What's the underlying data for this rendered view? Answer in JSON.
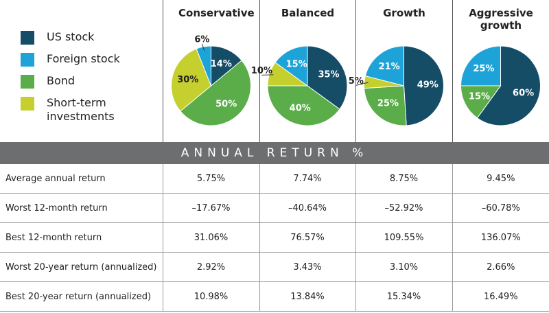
{
  "legend": {
    "items": [
      {
        "name": "US stock",
        "color": "#154d67"
      },
      {
        "name": "Foreign stock",
        "color": "#1ea3d8"
      },
      {
        "name": "Bond",
        "color": "#5aad48"
      },
      {
        "name": "Short-term investments",
        "color": "#c5cf2e"
      }
    ]
  },
  "chart_data": [
    {
      "type": "pie",
      "title": "Conservative",
      "categories": [
        "US stock",
        "Bond",
        "Short-term investments",
        "Foreign stock"
      ],
      "values": [
        14,
        50,
        30,
        6
      ],
      "value_labels": [
        "14%",
        "50%",
        "30%",
        "6%"
      ],
      "colors": [
        "#154d67",
        "#5aad48",
        "#c5cf2e",
        "#1ea3d8"
      ]
    },
    {
      "type": "pie",
      "title": "Balanced",
      "categories": [
        "US stock",
        "Bond",
        "Short-term investments",
        "Foreign stock"
      ],
      "values": [
        35,
        40,
        10,
        15
      ],
      "value_labels": [
        "35%",
        "40%",
        "10%",
        "15%"
      ],
      "colors": [
        "#154d67",
        "#5aad48",
        "#c5cf2e",
        "#1ea3d8"
      ]
    },
    {
      "type": "pie",
      "title": "Growth",
      "categories": [
        "US stock",
        "Bond",
        "Short-term investments",
        "Foreign stock"
      ],
      "values": [
        49,
        25,
        5,
        21
      ],
      "value_labels": [
        "49%",
        "25%",
        "5%",
        "21%"
      ],
      "colors": [
        "#154d67",
        "#5aad48",
        "#c5cf2e",
        "#1ea3d8"
      ]
    },
    {
      "type": "pie",
      "title": "Aggressive growth",
      "categories": [
        "US stock",
        "Bond",
        "Foreign stock"
      ],
      "values": [
        60,
        15,
        25
      ],
      "value_labels": [
        "60%",
        "15%",
        "25%"
      ],
      "colors": [
        "#154d67",
        "#5aad48",
        "#1ea3d8"
      ]
    }
  ],
  "table": {
    "header": "ANNUAL RETURN %",
    "rows": [
      [
        "Average annual return",
        "5.75%",
        "7.74%",
        "8.75%",
        "9.45%"
      ],
      [
        "Worst 12-month return",
        "–17.67%",
        "–40.64%",
        "–52.92%",
        "–60.78%"
      ],
      [
        "Best 12-month return",
        "31.06%",
        "76.57%",
        "109.55%",
        "136.07%"
      ],
      [
        "Worst 20-year return (annualized)",
        "2.92%",
        "3.43%",
        "3.10%",
        "2.66%"
      ],
      [
        "Best 20-year return (annualized)",
        "10.98%",
        "13.84%",
        "15.34%",
        "16.49%"
      ]
    ]
  }
}
